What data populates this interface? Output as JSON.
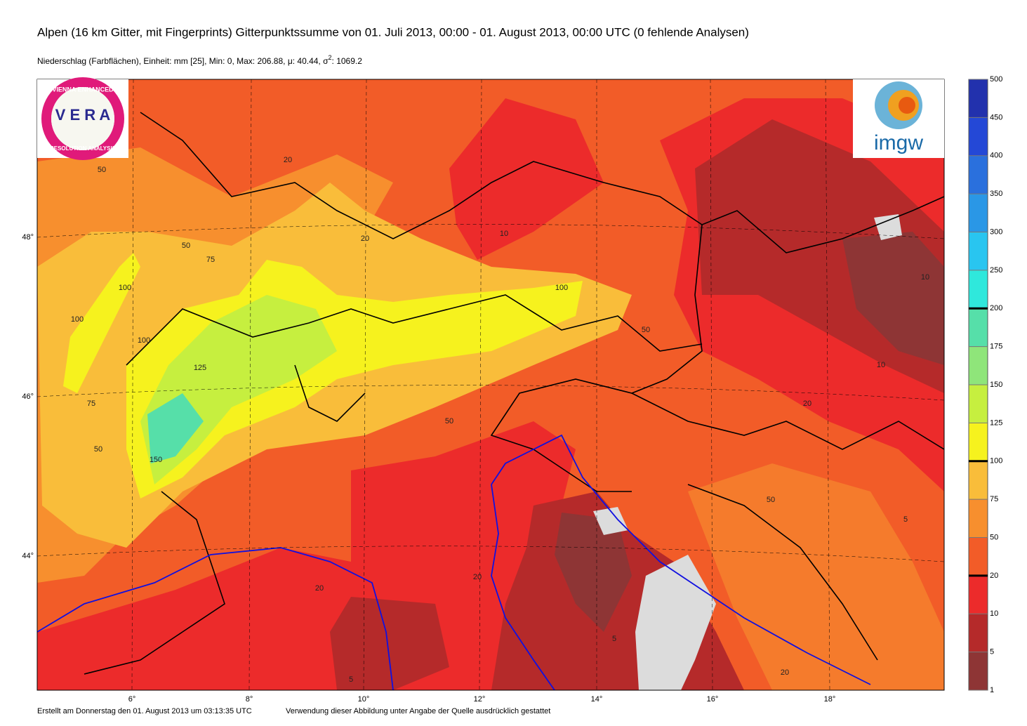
{
  "header": {
    "title": "Alpen (16 km Gitter, mit Fingerprints) Gitterpunktssumme von 01. Juli 2013, 00:00 - 01. August 2013, 00:00 UTC (0 fehlende Analysen)",
    "subtitle": [
      "Niederschlag (Farbflächen), Einheit: mm [25], Min: 0, Max: 206.88,  μ: 40.44, σ",
      "2",
      ": 1069.2"
    ]
  },
  "logos": {
    "vera": [
      "VIENNA ENHANCED",
      "V E R A",
      "RESOLUTION ANALYSIS"
    ],
    "imgw": "imgw"
  },
  "map": {
    "lat_labels": [
      "48°",
      "46°",
      "44°"
    ],
    "lon_labels": [
      "6°",
      "8°",
      "10°",
      "12°",
      "14°",
      "16°",
      "18°"
    ],
    "contour_labels": [
      "50",
      "20",
      "50",
      "75",
      "100",
      "100",
      "125",
      "150",
      "100",
      "75",
      "50",
      "20",
      "10",
      "20",
      "50",
      "100",
      "20",
      "50",
      "10",
      "20",
      "5",
      "20",
      "5",
      "50",
      "20",
      "10",
      "5"
    ]
  },
  "colorbar": {
    "levels": [
      1,
      5,
      10,
      20,
      50,
      75,
      100,
      125,
      150,
      175,
      200,
      250,
      300,
      350,
      400,
      450,
      500
    ],
    "colors": [
      "#8e3535",
      "#b52a2a",
      "#ec2b2b",
      "#f25c28",
      "#f78f2e",
      "#f9bd3a",
      "#f6f21e",
      "#c6ef3f",
      "#8fe57a",
      "#56dfa9",
      "#2fe8dc",
      "#29c5f0",
      "#2a97e6",
      "#2a70dd",
      "#2448d6",
      "#2231ad"
    ],
    "bold_levels": [
      20,
      100,
      200
    ]
  },
  "footer": {
    "created": "Erstellt am Donnerstag den 01. August 2013 um 03:13:35 UTC",
    "usage": "Verwendung dieser Abbildung unter Angabe der Quelle ausdrücklich gestattet"
  }
}
